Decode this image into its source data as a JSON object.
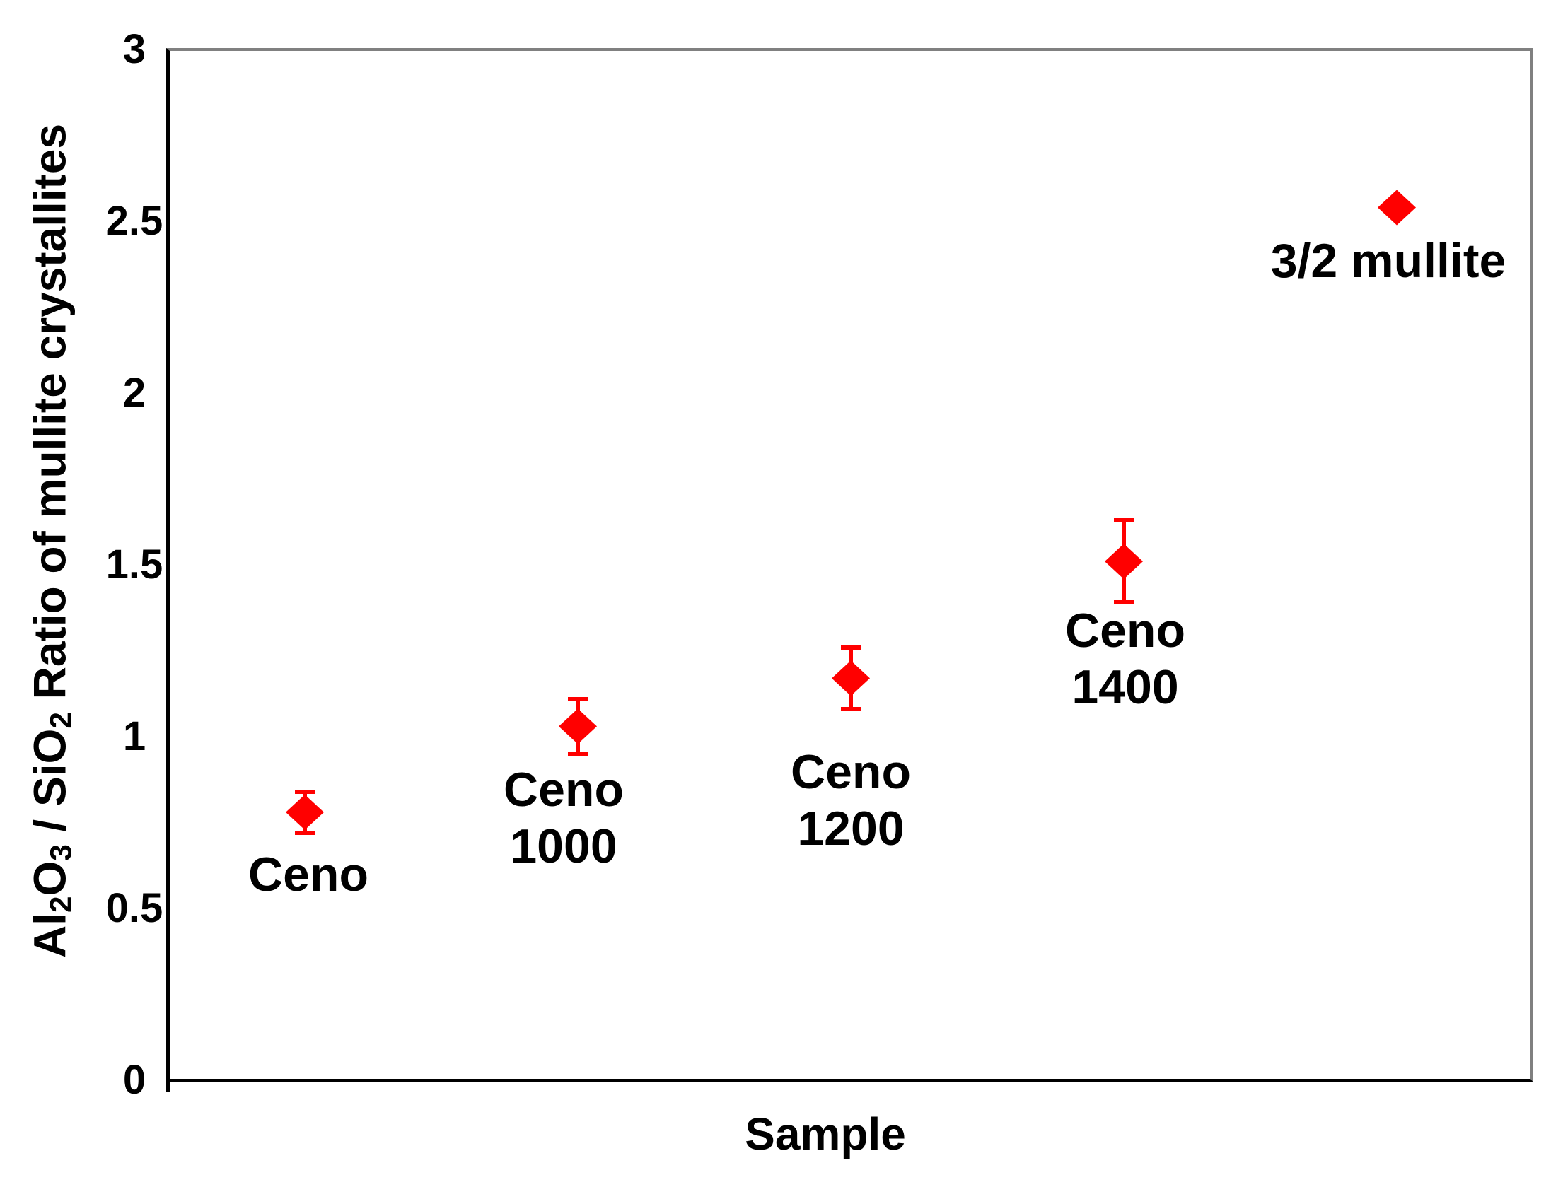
{
  "chart_data": {
    "type": "scatter",
    "title": "",
    "xlabel": "Sample",
    "ylabel": "Al2O3 / SiO2 Ratio of mullite crystallites",
    "ylabel_rich": [
      {
        "t": "Al"
      },
      {
        "t": "2",
        "sub": true
      },
      {
        "t": "O"
      },
      {
        "t": "3",
        "sub": true
      },
      {
        "t": " / SiO"
      },
      {
        "t": "2",
        "sub": true
      },
      {
        "t": " Ratio of mullite crystallites"
      }
    ],
    "ylim": [
      0,
      3
    ],
    "ytick_labels": [
      "3",
      "2.5",
      "2",
      "1.5",
      "1",
      "0.5",
      "0"
    ],
    "ytick_values": [
      3,
      2.5,
      2,
      1.5,
      1,
      0.5,
      0
    ],
    "grid": false,
    "legend_position": "none",
    "marker": {
      "shape": "diamond",
      "color": "#ff0000"
    },
    "frame_colors": {
      "left_bottom_axis": "#000000",
      "top_right_border": "#808080"
    },
    "categories": [
      "Ceno",
      "Ceno 1000",
      "Ceno 1200",
      "Ceno 1400",
      "3/2 mullite"
    ],
    "points": [
      {
        "label_lines": [
          "Ceno"
        ],
        "value": 0.78,
        "error": 0.06
      },
      {
        "label_lines": [
          "Ceno",
          "1000"
        ],
        "value": 1.03,
        "error": 0.08
      },
      {
        "label_lines": [
          "Ceno",
          "1200"
        ],
        "value": 1.17,
        "error": 0.09
      },
      {
        "label_lines": [
          "Ceno",
          "1400"
        ],
        "value": 1.51,
        "error": 0.12
      },
      {
        "label_lines": [
          "3/2 mullite"
        ],
        "value": 2.54,
        "error": 0
      }
    ]
  }
}
